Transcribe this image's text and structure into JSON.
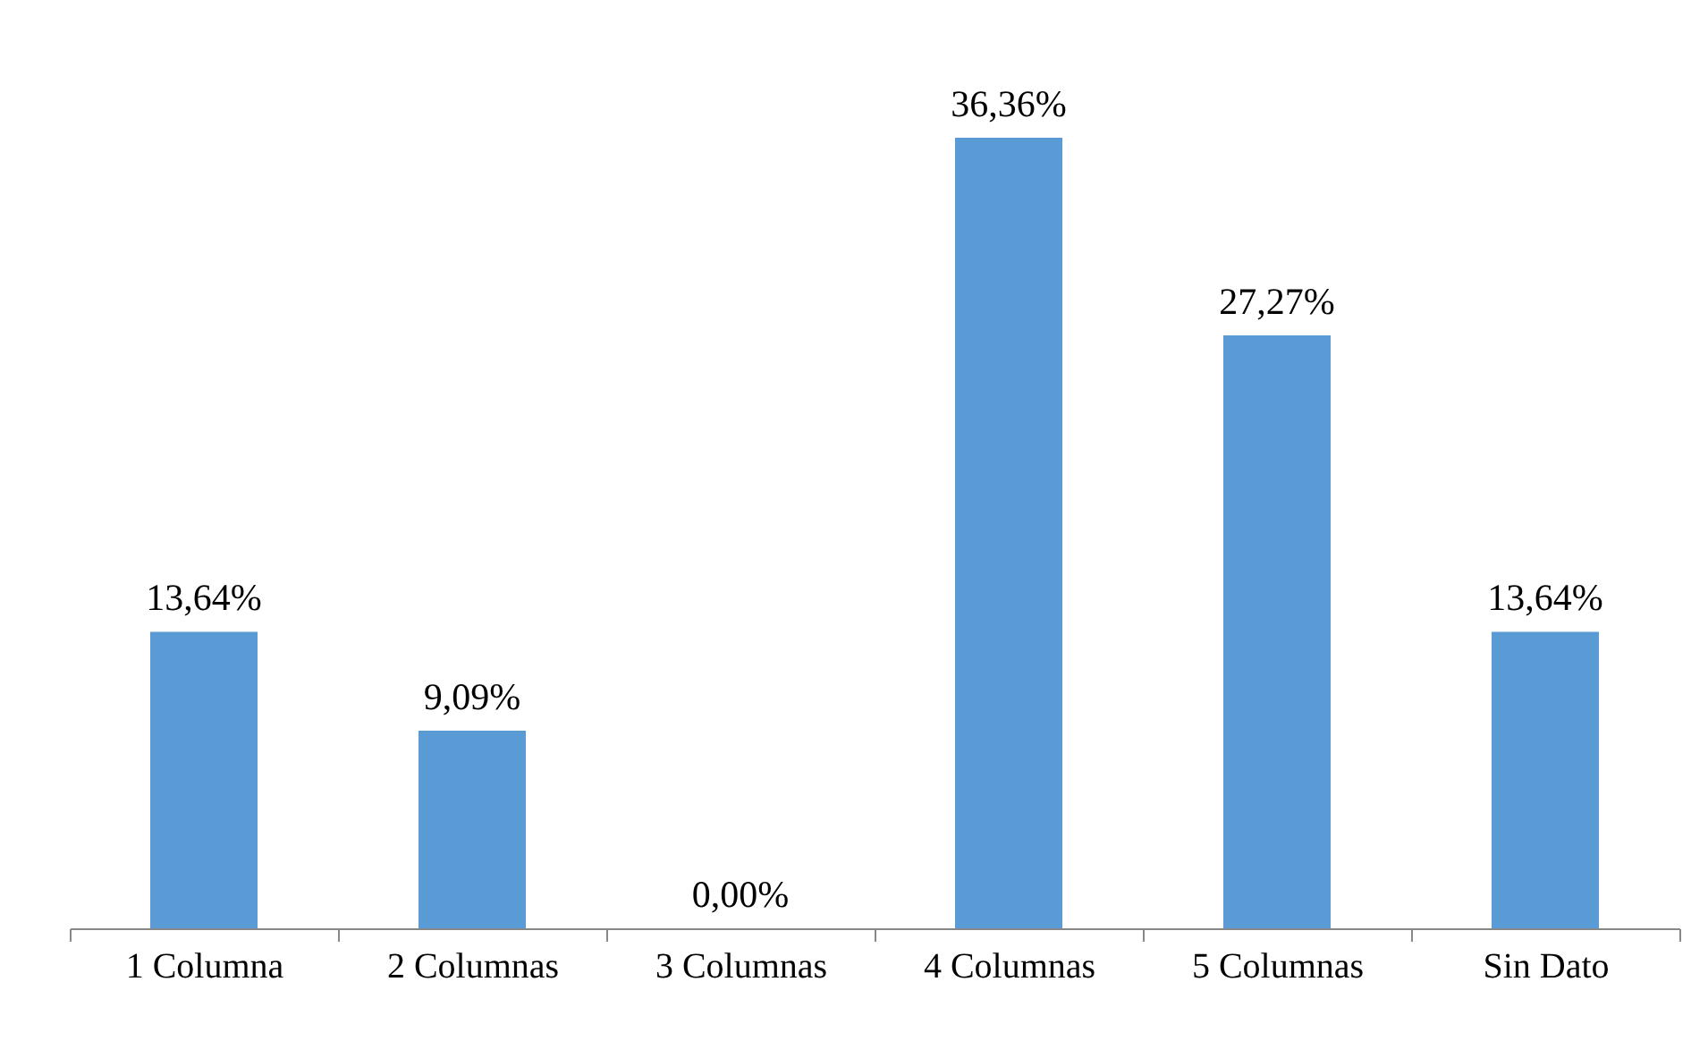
{
  "chart_data": {
    "type": "bar",
    "categories": [
      "1 Columna",
      "2 Columnas",
      "3 Columnas",
      "4 Columnas",
      "5 Columnas",
      "Sin Dato"
    ],
    "values": [
      13.64,
      9.09,
      0.0,
      36.36,
      27.27,
      13.64
    ],
    "value_labels": [
      "13,64%",
      "9,09%",
      "0,00%",
      "36,36%",
      "27,27%",
      "13,64%"
    ],
    "color": "#5b9bd5",
    "grid": false
  }
}
